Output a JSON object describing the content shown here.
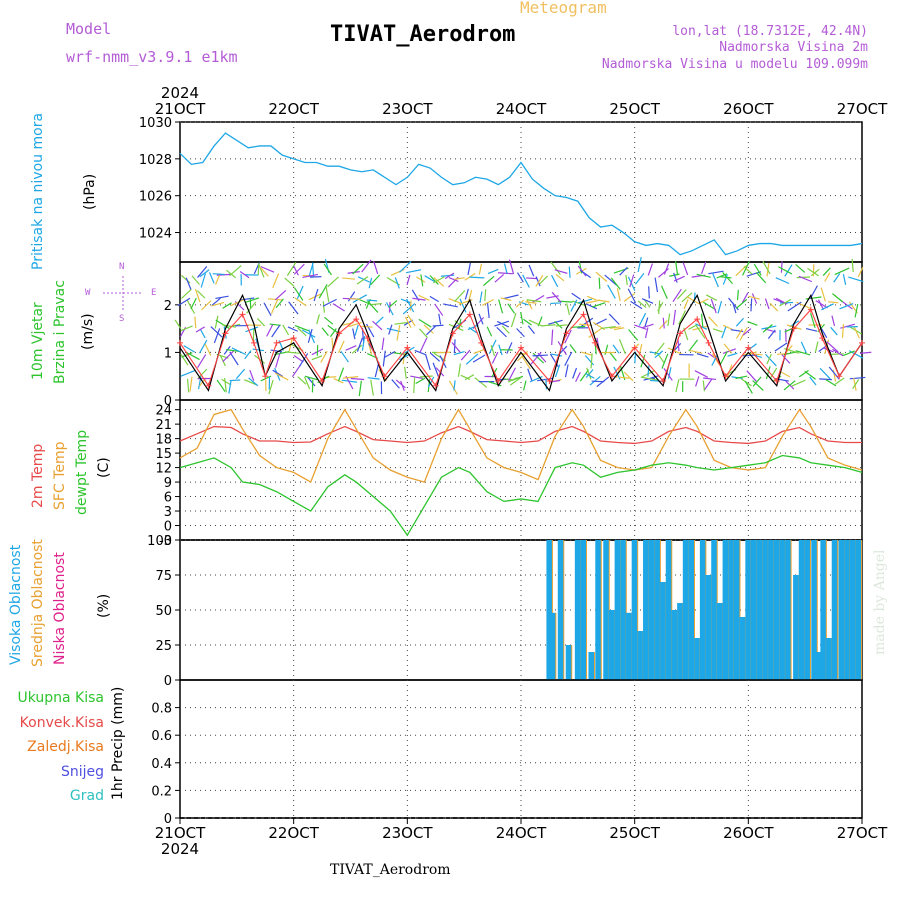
{
  "header": {
    "model_label": "Model",
    "model_name": "wrf-nmm_v3.9.1 e1km",
    "title": "TIVAT_Aerodrom",
    "kind": "Meteogram",
    "location": "lon,lat (18.7312E, 42.4N)",
    "elevation": "Nadmorska Visina 2m",
    "model_elevation": "Nadmorska Visina u modelu 109.099m"
  },
  "footer": {
    "station": "TIVAT_Aerodrom",
    "watermark": "made by Angel"
  },
  "time_axis": {
    "year": "2024",
    "ticks": [
      "21OCT",
      "22OCT",
      "23OCT",
      "24OCT",
      "25OCT",
      "26OCT",
      "27OCT"
    ]
  },
  "panels": {
    "pressure": {
      "ylabel": "Pritisak na nivou mora",
      "unit": "(hPa)"
    },
    "wind": {
      "ylabel1": "10m Vjetar",
      "ylabel2": "Brzina i Pravac",
      "unit": "(m/s)",
      "compass_n": "N",
      "compass_s": "S",
      "compass_w": "W",
      "compass_e": "E"
    },
    "temp": {
      "label_2m": "2m Temp",
      "label_sfc": "SFC Temp",
      "label_dew": "dewpt Temp",
      "unit": "(C)"
    },
    "cloud": {
      "label_high": "Visoka Oblacnost",
      "label_mid": "Srednja Oblacnost",
      "label_low": "Niska Oblacnost",
      "unit": "(%)"
    },
    "precip": {
      "legend": [
        "Ukupna Kisa",
        "Konvek.Kisa",
        "Zaledj.Kisa",
        "Snijeg",
        "Grad"
      ],
      "ylabel": "1hr Precip (mm)"
    }
  },
  "colors": {
    "pressure": "#1ea7e6",
    "wind_speed": "#000000",
    "gust": "#ff4040",
    "t2m": "#e84a4a",
    "sfc": "#e8a030",
    "dew": "#2ec42e",
    "cloud_high": "#1ea7e6",
    "cloud_mid": "#e8a030",
    "cloud_low": "#e0208a",
    "precip_total": "#2ec42e",
    "precip_conv": "#e84a4a",
    "precip_frz": "#e87a20",
    "precip_snow": "#5050e0",
    "precip_hail": "#30c0c0"
  },
  "chart_data": [
    {
      "type": "line",
      "panel": "pressure",
      "ylim": [
        1022.4,
        1030
      ],
      "yticks": [
        "1024",
        "1026",
        "1028",
        "1030"
      ],
      "x": [
        0,
        0.1,
        0.2,
        0.3,
        0.4,
        0.5,
        0.6,
        0.7,
        0.8,
        0.9,
        1.0,
        1.1,
        1.2,
        1.3,
        1.4,
        1.5,
        1.6,
        1.7,
        1.8,
        1.9,
        2.0,
        2.1,
        2.2,
        2.3,
        2.4,
        2.5,
        2.6,
        2.7,
        2.8,
        2.9,
        3.0,
        3.1,
        3.2,
        3.3,
        3.4,
        3.5,
        3.6,
        3.7,
        3.8,
        3.9,
        4.0,
        4.1,
        4.2,
        4.3,
        4.4,
        4.5,
        4.6,
        4.7,
        4.8,
        4.9,
        5.0,
        5.1,
        5.2,
        5.3,
        5.4,
        5.5,
        5.6,
        5.7,
        5.8,
        5.9,
        6.0
      ],
      "values": [
        1028.3,
        1027.7,
        1027.8,
        1028.7,
        1029.4,
        1029.0,
        1028.6,
        1028.7,
        1028.7,
        1028.2,
        1028.0,
        1027.8,
        1027.8,
        1027.6,
        1027.6,
        1027.4,
        1027.3,
        1027.4,
        1027.0,
        1026.6,
        1027.0,
        1027.7,
        1027.5,
        1027.0,
        1026.6,
        1026.7,
        1027.0,
        1026.9,
        1026.6,
        1027.0,
        1027.8,
        1026.9,
        1026.4,
        1026.0,
        1025.9,
        1025.7,
        1024.8,
        1024.3,
        1024.4,
        1024.0,
        1023.5,
        1023.3,
        1023.4,
        1023.3,
        1022.8,
        1023.0,
        1023.3,
        1023.6,
        1022.8,
        1023.0,
        1023.3,
        1023.4,
        1023.4,
        1023.3,
        1023.3,
        1023.3,
        1023.3,
        1023.3,
        1023.3,
        1023.3,
        1023.4
      ],
      "series": [
        {
          "name": "",
          "color": "#1ea7e6"
        }
      ]
    },
    {
      "type": "line",
      "panel": "wind",
      "ylim": [
        0,
        2.9
      ],
      "yticks": [
        "0",
        "1",
        "2"
      ],
      "x": [
        0,
        0.25,
        0.4,
        0.55,
        0.65,
        0.75,
        0.85,
        1.0,
        1.25,
        1.4,
        1.55,
        1.65,
        1.8,
        2.0,
        2.25,
        2.4,
        2.55,
        2.65,
        2.8,
        3.0,
        3.25,
        3.4,
        3.55,
        3.65,
        3.8,
        4.0,
        4.25,
        4.4,
        4.55,
        4.65,
        4.8,
        5.0,
        5.25,
        5.4,
        5.55,
        5.65,
        5.8,
        6.0
      ],
      "values": [
        1.1,
        0.2,
        1.5,
        2.2,
        1.6,
        0.5,
        1.0,
        1.2,
        0.3,
        1.5,
        2.0,
        1.4,
        0.4,
        1.0,
        0.2,
        1.5,
        2.1,
        1.3,
        0.3,
        1.0,
        0.2,
        1.5,
        2.1,
        1.3,
        0.4,
        1.0,
        0.3,
        1.6,
        2.2,
        1.5,
        0.4,
        1.0,
        0.3,
        1.6,
        2.2,
        1.4,
        0.5,
        1.2
      ],
      "gust_values": [
        1.2,
        0.3,
        1.4,
        1.8,
        1.2,
        0.5,
        1.2,
        1.3,
        0.4,
        1.4,
        1.7,
        1.3,
        0.5,
        1.1,
        0.3,
        1.4,
        1.8,
        1.2,
        0.4,
        1.1,
        0.4,
        1.4,
        1.8,
        1.2,
        0.5,
        1.1,
        0.4,
        1.4,
        1.7,
        1.2,
        0.5,
        1.1,
        0.4,
        1.5,
        1.9,
        1.3,
        0.5,
        1.2
      ],
      "series": [
        {
          "name": "",
          "color": "#000000"
        }
      ]
    },
    {
      "type": "line",
      "panel": "temp",
      "ylim": [
        -3,
        26
      ],
      "yticks": [
        "-3",
        "0",
        "3",
        "6",
        "9",
        "12",
        "15",
        "18",
        "21",
        "24"
      ],
      "x": [
        0,
        0.15,
        0.3,
        0.45,
        0.55,
        0.7,
        0.85,
        1.0,
        1.15,
        1.3,
        1.45,
        1.55,
        1.7,
        1.85,
        2.0,
        2.15,
        2.3,
        2.45,
        2.55,
        2.7,
        2.85,
        3.0,
        3.15,
        3.3,
        3.45,
        3.55,
        3.7,
        3.85,
        4.0,
        4.15,
        4.3,
        4.45,
        4.55,
        4.7,
        4.85,
        5.0,
        5.15,
        5.3,
        5.45,
        5.55,
        5.7,
        5.85,
        6.0
      ],
      "series": [
        {
          "name": "2m Temp",
          "color": "#e84a4a",
          "values": [
            17.5,
            19.0,
            20.5,
            20.3,
            19.0,
            17.5,
            17.5,
            17.2,
            17.3,
            19.0,
            20.5,
            19.5,
            17.8,
            17.5,
            17.2,
            17.5,
            19.2,
            20.5,
            19.5,
            17.8,
            17.5,
            17.2,
            17.5,
            19.5,
            20.5,
            19.5,
            17.5,
            17.2,
            17.0,
            17.5,
            19.5,
            20.3,
            19.5,
            17.5,
            17.2,
            17.0,
            17.5,
            19.5,
            20.3,
            19.0,
            17.5,
            17.2,
            17.2
          ]
        },
        {
          "name": "SFC Temp",
          "color": "#e8a030",
          "values": [
            14.0,
            16.0,
            23.0,
            24.0,
            20.0,
            14.5,
            12.0,
            11.0,
            9.0,
            18.0,
            24.0,
            20.0,
            14.0,
            11.5,
            10.0,
            9.0,
            18.0,
            24.0,
            20.0,
            14.0,
            12.0,
            11.0,
            9.5,
            18.5,
            24.0,
            20.5,
            13.5,
            12.0,
            11.5,
            12.0,
            18.5,
            24.0,
            20.5,
            13.5,
            12.0,
            11.5,
            12.0,
            18.5,
            24.0,
            20.5,
            14.0,
            12.5,
            11.5
          ]
        },
        {
          "name": "dewpt Temp",
          "color": "#2ec42e",
          "values": [
            12.0,
            13.0,
            14.0,
            12.0,
            9.0,
            8.5,
            7.0,
            5.0,
            3.0,
            8.0,
            10.5,
            9.0,
            6.0,
            3.0,
            -2.0,
            4.0,
            10.0,
            12.0,
            11.0,
            7.0,
            5.0,
            5.5,
            5.0,
            12.0,
            13.0,
            12.5,
            10.0,
            11.0,
            11.5,
            12.5,
            13.0,
            12.5,
            12.0,
            11.5,
            12.0,
            12.5,
            13.0,
            14.5,
            14.0,
            13.0,
            12.5,
            12.0,
            11.0
          ]
        }
      ]
    },
    {
      "type": "bar",
      "panel": "cloud",
      "ylim": [
        0,
        100
      ],
      "yticks": [
        "0",
        "25",
        "50",
        "75",
        "100"
      ],
      "bars": [
        [
          3.25,
          100
        ],
        [
          3.28,
          48
        ],
        [
          3.35,
          100
        ],
        [
          3.42,
          25
        ],
        [
          3.5,
          100
        ],
        [
          3.55,
          100
        ],
        [
          3.62,
          20
        ],
        [
          3.68,
          100
        ],
        [
          3.75,
          100
        ],
        [
          3.8,
          50
        ],
        [
          3.85,
          100
        ],
        [
          3.9,
          100
        ],
        [
          3.95,
          48
        ],
        [
          4.0,
          100
        ],
        [
          4.05,
          35
        ],
        [
          4.1,
          100
        ],
        [
          4.15,
          100
        ],
        [
          4.2,
          100
        ],
        [
          4.25,
          70
        ],
        [
          4.3,
          100
        ],
        [
          4.35,
          50
        ],
        [
          4.4,
          55
        ],
        [
          4.45,
          100
        ],
        [
          4.5,
          100
        ],
        [
          4.55,
          30
        ],
        [
          4.6,
          100
        ],
        [
          4.65,
          75
        ],
        [
          4.7,
          100
        ],
        [
          4.75,
          55
        ],
        [
          4.8,
          100
        ],
        [
          4.85,
          100
        ],
        [
          4.9,
          100
        ],
        [
          4.95,
          45
        ],
        [
          5.0,
          100
        ],
        [
          5.05,
          100
        ],
        [
          5.1,
          100
        ],
        [
          5.15,
          100
        ],
        [
          5.2,
          100
        ],
        [
          5.25,
          100
        ],
        [
          5.3,
          100
        ],
        [
          5.35,
          100
        ],
        [
          5.42,
          75
        ],
        [
          5.47,
          100
        ],
        [
          5.52,
          100
        ],
        [
          5.58,
          100
        ],
        [
          5.62,
          20
        ],
        [
          5.66,
          100
        ],
        [
          5.71,
          30
        ],
        [
          5.76,
          100
        ],
        [
          5.82,
          100
        ],
        [
          5.87,
          100
        ],
        [
          5.92,
          100
        ],
        [
          5.97,
          100
        ]
      ],
      "series": [
        {
          "name": "Visoka Oblacnost",
          "color": "#1ea7e6"
        }
      ]
    },
    {
      "type": "line",
      "panel": "precip",
      "ylim": [
        0,
        1
      ],
      "yticks": [
        "0",
        "0.2",
        "0.4",
        "0.6",
        "0.8"
      ],
      "values": [],
      "series": [
        {
          "name": "Ukupna Kisa",
          "color": "#2ec42e"
        }
      ]
    }
  ]
}
